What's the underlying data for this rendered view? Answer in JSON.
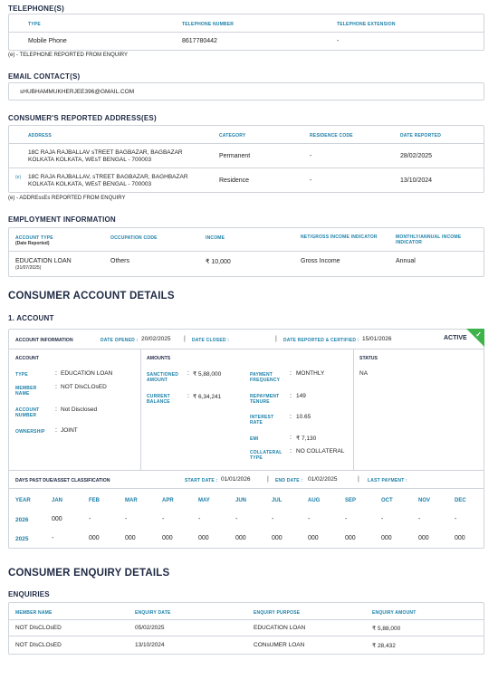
{
  "telephones": {
    "heading": "TELEPHONE(S)",
    "col_type": "TYPE",
    "col_number": "TELEPHONE NUMBER",
    "col_extension": "TELEPHONE EXTENSION",
    "rows": [
      {
        "type": "Mobile Phone",
        "number": "8617780442",
        "extension": "-"
      }
    ],
    "note": "(e) - TELEPHONE REPORTED FROM ENQUIRY"
  },
  "email": {
    "heading": "EMAIL CONTACT(S)",
    "value": "sHUBHAMMUKHERJEE396@GMAIL.COM"
  },
  "addresses": {
    "heading": "CONSUMER'S REPORTED ADDRESS(ES)",
    "col_address": "ADDRESS",
    "col_category": "CATEGORY",
    "col_residence": "RESIDENCE CODE",
    "col_date": "DATE REPORTED",
    "rows": [
      {
        "marker": "",
        "line1": "18C RAJA RAJBALLAV sTREET BAGBAZAR, BAGBAZAR",
        "line2": "KOLKATA KOLKATA, WEsT BENGAL - 700003",
        "category": "Permanent",
        "residence": "-",
        "date": "28/02/2025"
      },
      {
        "marker": "(e)",
        "line1": "18C RAJA RAJBALLAV, sTREET BAGBAZAR, BAGHBAZAR",
        "line2": "KOLKATA KOLKATA, WEsT BENGAL - 700003",
        "category": "Residence",
        "residence": "-",
        "date": "13/10/2024"
      }
    ],
    "note": "(e) - ADDREssEs REPORTED FROM ENQUIRY"
  },
  "employment": {
    "heading": "EMPLOYMENT INFORMATION",
    "col_account_type": "ACCOUNT TYPE",
    "col_account_type_sub": "(Date Reported)",
    "col_occupation": "OCCUPATION CODE",
    "col_income": "INCOME",
    "col_net_gross": "NET/GROSS INCOME INDICATOR",
    "col_monthly": "MONTHLY/ANNUAL INCOME INDICATOR",
    "account_type": "EDUCATION LOAN",
    "account_date": "(31/07/2025)",
    "occupation": "Others",
    "income": "₹ 10,000",
    "net_gross": "Gross Income",
    "monthly": "Annual"
  },
  "account_details": {
    "heading": "CONSUMER ACCOUNT DETAILS",
    "sub_heading": "1. ACCOUNT",
    "info_label": "ACCOUNT INFORMATION",
    "date_opened_label": "DATE OPENED :",
    "date_opened": "20/02/2025",
    "date_closed_label": "DATE CLOSED :",
    "date_closed": "",
    "date_reported_label": "DATE REPORTED & CERTIFIED :",
    "date_reported": "15/01/2026",
    "sep": "|",
    "badge": "ACTIVE",
    "tick": "✓",
    "account_col": "ACCOUNT",
    "amounts_col": "AMOUNTS",
    "status_col": "STATUS",
    "colon": ":",
    "type_label": "TYPE",
    "type_value": "EDUCATION LOAN",
    "member_label": "MEMBER NAME",
    "member_value": "NOT DIsCLOsED",
    "acc_num_label": "ACCOUNT NUMBER",
    "acc_num_value": "Not Disclosed",
    "ownership_label": "OWNERSHIP",
    "ownership_value": "JOINT",
    "sanctioned_label": "SANCTIONED AMOUNT",
    "sanctioned_value": "₹ 5,88,000",
    "current_label": "CURRENT BALANCE",
    "current_value": "₹ 6,34,241",
    "payfreq_label": "PAYMENT FREQUENCY",
    "payfreq_value": "MONTHLY",
    "tenure_label": "REPAYMENT TENURE",
    "tenure_value": "149",
    "interest_label": "INTEREST RATE",
    "interest_value": "10.65",
    "emi_label": "EMI",
    "emi_value": "₹ 7,130",
    "collateral_label": "COLLATERAL TYPE",
    "collateral_value": "NO COLLATERAL",
    "status_value": "NA",
    "dpd_label": "DAYS PAST DUE/ASSET CLASSIFICATION",
    "start_label": "START DATE :",
    "start_value": "01/01/2026",
    "end_label": "END DATE :",
    "end_value": "01/02/2025",
    "last_payment_label": "LAST PAYMENT :",
    "last_payment_value": "",
    "months": [
      "YEAR",
      "JAN",
      "FEB",
      "MAR",
      "APR",
      "MAY",
      "JUN",
      "JUL",
      "AUG",
      "SEP",
      "OCT",
      "NOV",
      "DEC"
    ],
    "dpd_rows": [
      {
        "year": "2026",
        "values": [
          "000",
          "-",
          "-",
          "-",
          "-",
          "-",
          "-",
          "-",
          "-",
          "-",
          "-",
          "-"
        ]
      },
      {
        "year": "2025",
        "values": [
          "-",
          "000",
          "000",
          "000",
          "000",
          "000",
          "000",
          "000",
          "000",
          "000",
          "000",
          "000"
        ]
      }
    ]
  },
  "enquiry": {
    "heading": "CONSUMER ENQUIRY DETAILS",
    "sub_heading": "ENQUIRIES",
    "col_member": "MEMBER NAME",
    "col_date": "ENQUIRY DATE",
    "col_purpose": "ENQUIRY PURPOSE",
    "col_amount": "ENQUIRY AMOUNT",
    "rows": [
      {
        "member": "NOT DIsCLOsED",
        "date": "05/02/2025",
        "purpose": "EDUCATION LOAN",
        "amount": "₹ 5,88,000"
      },
      {
        "member": "NOT DIsCLOsED",
        "date": "13/10/2024",
        "purpose": "CONsUMER LOAN",
        "amount": "₹ 28,432"
      }
    ]
  },
  "colors": {
    "accent": "#1a7fa8",
    "heading": "#1f2a44",
    "active": "#3db34a",
    "border": "#cfd4da"
  }
}
